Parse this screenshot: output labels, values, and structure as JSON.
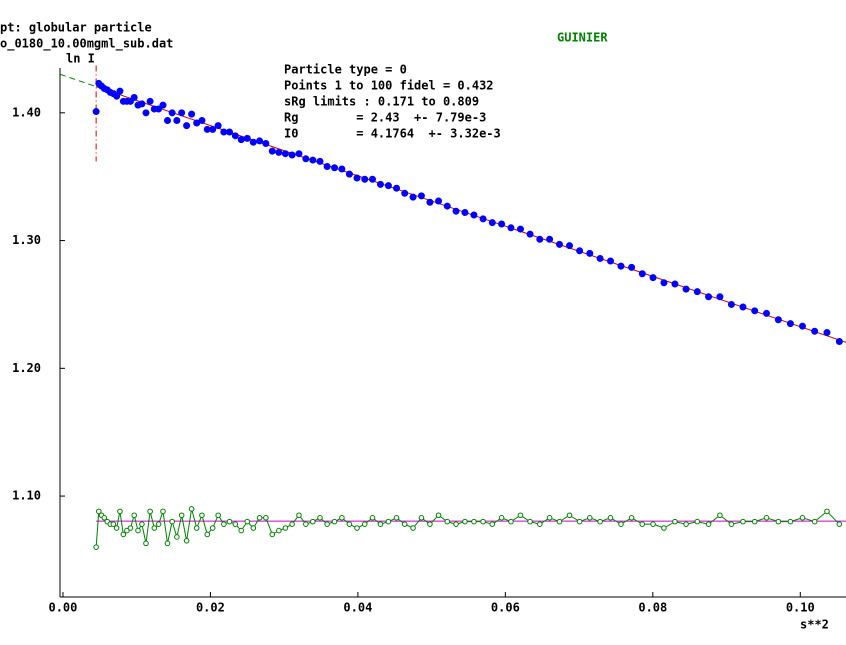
{
  "chart_data": {
    "type": "scatter",
    "title": "GUINIER",
    "header": [
      "pt: globular particle",
      "o_0180_10.00mgml_sub.dat"
    ],
    "info": [
      "Particle type = 0",
      "Points 1 to 100 fidel = 0.432",
      "sRg limits : 0.171 to 0.809",
      "Rg        = 2.43  +- 7.79e-3",
      "I0        = 4.1764  +- 3.32e-3"
    ],
    "xlabel": "s**2",
    "ylabel": "ln I",
    "xlim": [
      -0.0004,
      0.1062
    ],
    "ylim": [
      1.021,
      1.457
    ],
    "xticks": [
      {
        "value": 0,
        "label": "0.00"
      },
      {
        "value": 0.02,
        "label": "0.02"
      },
      {
        "value": 0.04,
        "label": "0.04"
      },
      {
        "value": 0.06,
        "label": "0.06"
      },
      {
        "value": 0.08,
        "label": "0.08"
      },
      {
        "value": 0.1,
        "label": "0.10"
      }
    ],
    "yticks": [
      {
        "value": 1.1,
        "label": "1.10"
      },
      {
        "value": 1.2,
        "label": "1.20"
      },
      {
        "value": 1.3,
        "label": "1.30"
      },
      {
        "value": 1.4,
        "label": "1.40"
      }
    ],
    "x": [
      0.0045,
      0.00486,
      0.00523,
      0.00561,
      0.00601,
      0.00642,
      0.00684,
      0.00728,
      0.00773,
      0.00819,
      0.00867,
      0.00916,
      0.00966,
      0.01018,
      0.01071,
      0.01126,
      0.01182,
      0.01239,
      0.01297,
      0.01357,
      0.01418,
      0.01481,
      0.01545,
      0.0161,
      0.01677,
      0.01745,
      0.01814,
      0.01885,
      0.01957,
      0.02031,
      0.02105,
      0.02182,
      0.02259,
      0.02338,
      0.02418,
      0.025,
      0.02582,
      0.02667,
      0.02752,
      0.02839,
      0.02928,
      0.03017,
      0.03108,
      0.03201,
      0.03294,
      0.03389,
      0.03486,
      0.03583,
      0.03683,
      0.03783,
      0.03885,
      0.03988,
      0.04093,
      0.04198,
      0.04306,
      0.04414,
      0.04524,
      0.04635,
      0.04748,
      0.04862,
      0.04977,
      0.05094,
      0.05212,
      0.05331,
      0.05452,
      0.05574,
      0.05698,
      0.05823,
      0.05949,
      0.06076,
      0.06205,
      0.06335,
      0.06467,
      0.066,
      0.06734,
      0.0687,
      0.07007,
      0.07145,
      0.07285,
      0.07426,
      0.07568,
      0.07712,
      0.07857,
      0.08003,
      0.08151,
      0.083,
      0.08451,
      0.08603,
      0.08756,
      0.0891,
      0.09066,
      0.09223,
      0.09382,
      0.09542,
      0.09703,
      0.09866,
      0.1003,
      0.10195,
      0.10362,
      0.1053
    ],
    "series": [
      {
        "color": "#0000ff",
        "marker": "filled",
        "connect": false,
        "values": [
          1.401,
          1.423,
          1.421,
          1.419,
          1.418,
          1.416,
          1.415,
          1.413,
          1.417,
          1.409,
          1.409,
          1.409,
          1.412,
          1.406,
          1.407,
          1.4,
          1.409,
          1.403,
          1.403,
          1.406,
          1.394,
          1.4,
          1.394,
          1.4,
          1.39,
          1.399,
          1.392,
          1.394,
          1.387,
          1.387,
          1.39,
          1.385,
          1.385,
          1.382,
          1.379,
          1.38,
          1.377,
          1.378,
          1.376,
          1.37,
          1.369,
          1.368,
          1.367,
          1.368,
          1.364,
          1.363,
          1.362,
          1.358,
          1.357,
          1.356,
          1.352,
          1.349,
          1.348,
          1.348,
          1.344,
          1.343,
          1.341,
          1.337,
          1.334,
          1.335,
          1.33,
          1.331,
          1.327,
          1.323,
          1.322,
          1.32,
          1.317,
          1.314,
          1.313,
          1.31,
          1.309,
          1.305,
          1.301,
          1.301,
          1.297,
          1.296,
          1.292,
          1.29,
          1.286,
          1.284,
          1.28,
          1.279,
          1.274,
          1.271,
          1.267,
          1.266,
          1.262,
          1.26,
          1.256,
          1.256,
          1.25,
          1.248,
          1.245,
          1.243,
          1.238,
          1.235,
          1.233,
          1.229,
          1.228,
          1.221
        ]
      },
      {
        "color": "#008000",
        "marker": "open",
        "connect": true,
        "values": [
          1.06,
          1.088,
          1.085,
          1.083,
          1.08,
          1.078,
          1.078,
          1.075,
          1.088,
          1.07,
          1.073,
          1.075,
          1.085,
          1.073,
          1.078,
          1.063,
          1.088,
          1.075,
          1.078,
          1.088,
          1.063,
          1.08,
          1.068,
          1.085,
          1.065,
          1.09,
          1.075,
          1.085,
          1.07,
          1.075,
          1.085,
          1.078,
          1.08,
          1.078,
          1.073,
          1.08,
          1.075,
          1.083,
          1.083,
          1.07,
          1.073,
          1.075,
          1.078,
          1.085,
          1.078,
          1.08,
          1.083,
          1.078,
          1.08,
          1.083,
          1.078,
          1.075,
          1.078,
          1.083,
          1.078,
          1.08,
          1.083,
          1.078,
          1.075,
          1.083,
          1.078,
          1.085,
          1.08,
          1.078,
          1.08,
          1.08,
          1.08,
          1.078,
          1.083,
          1.08,
          1.085,
          1.08,
          1.078,
          1.083,
          1.08,
          1.085,
          1.08,
          1.083,
          1.08,
          1.083,
          1.078,
          1.083,
          1.078,
          1.078,
          1.075,
          1.08,
          1.078,
          1.08,
          1.078,
          1.085,
          1.078,
          1.08,
          1.08,
          1.083,
          1.08,
          1.08,
          1.083,
          1.08,
          1.088,
          1.078
        ]
      }
    ],
    "lines": [
      {
        "color": "#cc0000",
        "style": "solid",
        "x": [
          0.0045,
          0.1062
        ],
        "values": [
          1.4205,
          1.2204
        ]
      },
      {
        "color": "#008000",
        "style": "dashed",
        "x": [
          -0.0004,
          0.0045
        ],
        "values": [
          1.4302,
          1.4205
        ]
      },
      {
        "color": "#cc00cc",
        "style": "solid",
        "x": [
          0.0045,
          0.1062
        ],
        "values": [
          1.0804,
          1.0804
        ]
      },
      {
        "color": "#cc0000",
        "style": "dashdot",
        "x": [
          0.0045,
          0.0045
        ],
        "values": [
          1.437,
          1.362
        ]
      }
    ]
  }
}
